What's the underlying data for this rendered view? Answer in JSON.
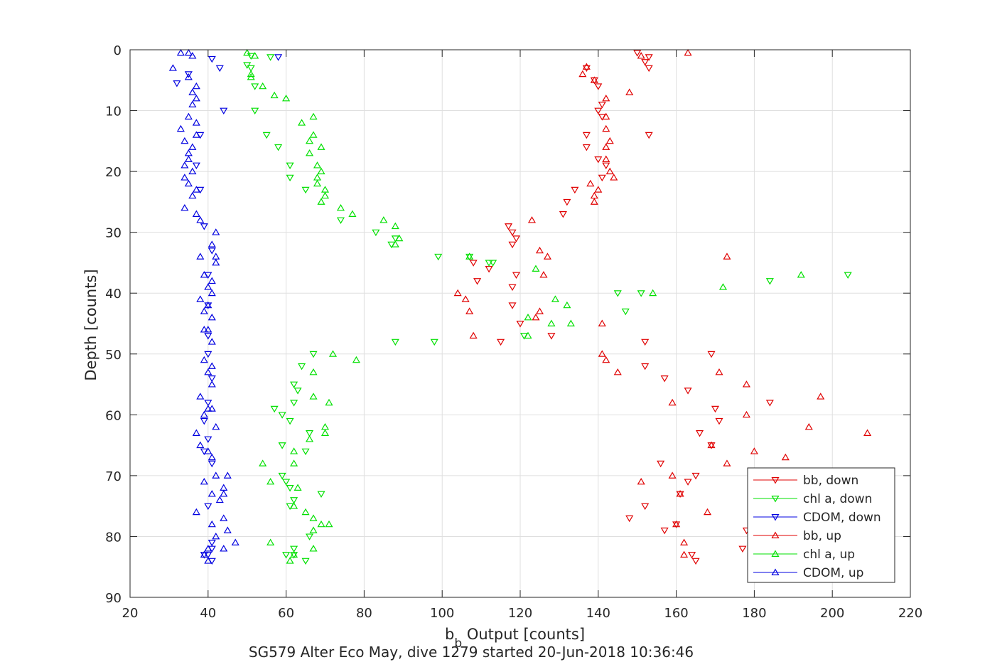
{
  "chart_data": {
    "type": "scatter",
    "xlabel_main": "b",
    "xlabel_sub": "b",
    "xlabel_rest": " Output [counts]",
    "ylabel": "Depth [counts]",
    "footer": "SG579 Alter Eco May, dive 1279 started 20-Jun-2018 10:36:46",
    "xlim": [
      20,
      220
    ],
    "ylim": [
      0,
      90
    ],
    "y_reversed": true,
    "grid": true,
    "legend_position": "bottom-right",
    "xticks": [
      "20",
      "40",
      "60",
      "80",
      "100",
      "120",
      "140",
      "160",
      "180",
      "200",
      "220"
    ],
    "yticks": [
      "0",
      "10",
      "20",
      "30",
      "40",
      "50",
      "60",
      "70",
      "80",
      "90"
    ],
    "series": [
      {
        "name": "bb, down",
        "color": "#e00000",
        "marker": "triangle-down",
        "points": [
          [
            150,
            0.5
          ],
          [
            153,
            1.2
          ],
          [
            152,
            2
          ],
          [
            153,
            3
          ],
          [
            137,
            3
          ],
          [
            139,
            5
          ],
          [
            140,
            6
          ],
          [
            141,
            9
          ],
          [
            140,
            10
          ],
          [
            141,
            11
          ],
          [
            137,
            14
          ],
          [
            153,
            14
          ],
          [
            137,
            16
          ],
          [
            140,
            18
          ],
          [
            142,
            19
          ],
          [
            141,
            21
          ],
          [
            134,
            23
          ],
          [
            132,
            25
          ],
          [
            131,
            27
          ],
          [
            117,
            29
          ],
          [
            118,
            30
          ],
          [
            119,
            31
          ],
          [
            118,
            32
          ],
          [
            119,
            37
          ],
          [
            108,
            35
          ],
          [
            112,
            36
          ],
          [
            109,
            38
          ],
          [
            118,
            39
          ],
          [
            118,
            42
          ],
          [
            120,
            45
          ],
          [
            128,
            47
          ],
          [
            115,
            48
          ],
          [
            152,
            48
          ],
          [
            169,
            50
          ],
          [
            152,
            52
          ],
          [
            157,
            54
          ],
          [
            163,
            56
          ],
          [
            184,
            58
          ],
          [
            170,
            59
          ],
          [
            171,
            61
          ],
          [
            166,
            63
          ],
          [
            169,
            65
          ],
          [
            156,
            68
          ],
          [
            165,
            70
          ],
          [
            163,
            71
          ],
          [
            161,
            73
          ],
          [
            152,
            75
          ],
          [
            148,
            77
          ],
          [
            157,
            79
          ],
          [
            160,
            78
          ],
          [
            164,
            83
          ],
          [
            165,
            84
          ],
          [
            178,
            79
          ],
          [
            177,
            82
          ]
        ]
      },
      {
        "name": "chl a, down",
        "color": "#00e000",
        "marker": "triangle-down",
        "points": [
          [
            51,
            1
          ],
          [
            56,
            1.2
          ],
          [
            50,
            2.5
          ],
          [
            51,
            3
          ],
          [
            52,
            6
          ],
          [
            52,
            10
          ],
          [
            55,
            14
          ],
          [
            58,
            16
          ],
          [
            61,
            19
          ],
          [
            61,
            21
          ],
          [
            65,
            23
          ],
          [
            74,
            28
          ],
          [
            88,
            31
          ],
          [
            83,
            30
          ],
          [
            87,
            32
          ],
          [
            99,
            34
          ],
          [
            112,
            35
          ],
          [
            107,
            34
          ],
          [
            113,
            35
          ],
          [
            121,
            47
          ],
          [
            88,
            48
          ],
          [
            98,
            48
          ],
          [
            145,
            40
          ],
          [
            147,
            43
          ],
          [
            151,
            40
          ],
          [
            184,
            38
          ],
          [
            204,
            37
          ],
          [
            67,
            50
          ],
          [
            64,
            52
          ],
          [
            62,
            55
          ],
          [
            63,
            56
          ],
          [
            62,
            58
          ],
          [
            57,
            59
          ],
          [
            59,
            60
          ],
          [
            61,
            61
          ],
          [
            66,
            63
          ],
          [
            59,
            65
          ],
          [
            65,
            66
          ],
          [
            59,
            70
          ],
          [
            60,
            71
          ],
          [
            61,
            72
          ],
          [
            62,
            74
          ],
          [
            61,
            75
          ],
          [
            69,
            73
          ],
          [
            66,
            80
          ],
          [
            62,
            82
          ],
          [
            62,
            83
          ],
          [
            60,
            83
          ],
          [
            65,
            84
          ]
        ]
      },
      {
        "name": "CDOM, down",
        "color": "#0000e0",
        "marker": "triangle-down",
        "points": [
          [
            58,
            1.2
          ],
          [
            41,
            1.5
          ],
          [
            43,
            3
          ],
          [
            35,
            4
          ],
          [
            32,
            5.5
          ],
          [
            44,
            10
          ],
          [
            38,
            14
          ],
          [
            37,
            19
          ],
          [
            38,
            23
          ],
          [
            39,
            29
          ],
          [
            41,
            33
          ],
          [
            40,
            37
          ],
          [
            40,
            42
          ],
          [
            40,
            47
          ],
          [
            40,
            50
          ],
          [
            41,
            54
          ],
          [
            40,
            58
          ],
          [
            39,
            61
          ],
          [
            40,
            64
          ],
          [
            39,
            66
          ],
          [
            41,
            68
          ],
          [
            40,
            75
          ],
          [
            41,
            81
          ],
          [
            41,
            82
          ],
          [
            40,
            83
          ],
          [
            41,
            84
          ],
          [
            39,
            83
          ]
        ]
      },
      {
        "name": "bb, up",
        "color": "#e00000",
        "marker": "triangle-up",
        "points": [
          [
            163,
            0.5
          ],
          [
            151,
            1
          ],
          [
            137,
            2.8
          ],
          [
            136,
            4
          ],
          [
            139,
            5
          ],
          [
            148,
            7
          ],
          [
            142,
            8
          ],
          [
            142,
            11
          ],
          [
            142,
            13
          ],
          [
            143,
            15
          ],
          [
            142,
            16
          ],
          [
            142,
            18
          ],
          [
            143,
            20
          ],
          [
            144,
            21
          ],
          [
            138,
            22
          ],
          [
            140,
            23
          ],
          [
            139,
            24
          ],
          [
            139,
            25
          ],
          [
            123,
            28
          ],
          [
            125,
            33
          ],
          [
            127,
            34
          ],
          [
            126,
            37
          ],
          [
            104,
            40
          ],
          [
            106,
            41
          ],
          [
            107,
            43
          ],
          [
            108,
            47
          ],
          [
            124,
            44
          ],
          [
            125,
            43
          ],
          [
            141,
            45
          ],
          [
            141,
            50
          ],
          [
            142,
            51
          ],
          [
            145,
            53
          ],
          [
            173,
            34
          ],
          [
            178,
            55
          ],
          [
            197,
            57
          ],
          [
            159,
            58
          ],
          [
            178,
            60
          ],
          [
            194,
            62
          ],
          [
            209,
            63
          ],
          [
            180,
            66
          ],
          [
            188,
            67
          ],
          [
            169,
            65
          ],
          [
            173,
            68
          ],
          [
            159,
            70
          ],
          [
            171,
            53
          ],
          [
            151,
            71
          ],
          [
            168,
            76
          ],
          [
            160,
            78
          ],
          [
            162,
            81
          ],
          [
            161,
            73
          ],
          [
            162,
            83
          ]
        ]
      },
      {
        "name": "chl a, up",
        "color": "#00e000",
        "marker": "triangle-up",
        "points": [
          [
            50,
            0.5
          ],
          [
            52,
            1
          ],
          [
            51,
            4
          ],
          [
            51,
            4.5
          ],
          [
            54,
            6
          ],
          [
            57,
            7.5
          ],
          [
            60,
            8
          ],
          [
            67,
            11
          ],
          [
            64,
            12
          ],
          [
            67,
            14
          ],
          [
            66,
            15
          ],
          [
            69,
            16
          ],
          [
            66,
            17
          ],
          [
            68,
            19
          ],
          [
            69,
            20
          ],
          [
            68,
            21
          ],
          [
            68,
            22
          ],
          [
            70,
            23
          ],
          [
            70,
            24
          ],
          [
            69,
            25
          ],
          [
            74,
            26
          ],
          [
            77,
            27
          ],
          [
            85,
            28
          ],
          [
            88,
            29
          ],
          [
            89,
            31
          ],
          [
            88,
            32
          ],
          [
            107,
            34
          ],
          [
            124,
            36
          ],
          [
            129,
            41
          ],
          [
            132,
            42
          ],
          [
            122,
            44
          ],
          [
            128,
            45
          ],
          [
            133,
            45
          ],
          [
            122,
            47
          ],
          [
            154,
            40
          ],
          [
            172,
            39
          ],
          [
            192,
            37
          ],
          [
            72,
            50
          ],
          [
            78,
            51
          ],
          [
            67,
            53
          ],
          [
            67,
            57
          ],
          [
            71,
            58
          ],
          [
            70,
            62
          ],
          [
            70,
            63
          ],
          [
            66,
            64
          ],
          [
            54,
            68
          ],
          [
            62,
            66
          ],
          [
            62,
            68
          ],
          [
            56,
            71
          ],
          [
            63,
            72
          ],
          [
            62,
            75
          ],
          [
            65,
            76
          ],
          [
            67,
            77
          ],
          [
            69,
            78
          ],
          [
            71,
            78
          ],
          [
            67,
            79
          ],
          [
            56,
            81
          ],
          [
            67,
            82
          ],
          [
            62,
            83
          ],
          [
            61,
            84
          ]
        ]
      },
      {
        "name": "CDOM, up",
        "color": "#0000e0",
        "marker": "triangle-up",
        "points": [
          [
            33,
            0.5
          ],
          [
            35,
            0.5
          ],
          [
            36,
            1
          ],
          [
            31,
            3
          ],
          [
            35,
            4.5
          ],
          [
            37,
            6
          ],
          [
            36,
            7
          ],
          [
            37,
            8
          ],
          [
            36,
            9
          ],
          [
            35,
            11
          ],
          [
            37,
            12
          ],
          [
            33,
            13
          ],
          [
            37,
            14
          ],
          [
            34,
            15
          ],
          [
            36,
            16
          ],
          [
            35,
            17
          ],
          [
            35,
            18
          ],
          [
            34,
            19
          ],
          [
            36,
            20
          ],
          [
            34,
            21
          ],
          [
            35,
            22
          ],
          [
            37,
            23
          ],
          [
            36,
            24
          ],
          [
            34,
            26
          ],
          [
            37,
            27
          ],
          [
            38,
            28
          ],
          [
            42,
            30
          ],
          [
            41,
            32
          ],
          [
            42,
            34
          ],
          [
            38,
            34
          ],
          [
            42,
            35
          ],
          [
            39,
            37
          ],
          [
            41,
            38
          ],
          [
            40,
            39
          ],
          [
            41,
            40
          ],
          [
            38,
            41
          ],
          [
            40,
            42
          ],
          [
            39,
            43
          ],
          [
            41,
            44
          ],
          [
            39,
            46
          ],
          [
            40,
            46
          ],
          [
            41,
            48
          ],
          [
            39,
            51
          ],
          [
            41,
            52
          ],
          [
            40,
            53
          ],
          [
            41,
            55
          ],
          [
            38,
            57
          ],
          [
            40,
            59
          ],
          [
            41,
            59
          ],
          [
            39,
            60
          ],
          [
            42,
            62
          ],
          [
            37,
            63
          ],
          [
            38,
            65
          ],
          [
            40,
            66
          ],
          [
            41,
            67
          ],
          [
            42,
            70
          ],
          [
            45,
            70
          ],
          [
            44,
            72
          ],
          [
            39,
            71
          ],
          [
            41,
            73
          ],
          [
            44,
            73
          ],
          [
            43,
            74
          ],
          [
            37,
            76
          ],
          [
            44,
            77
          ],
          [
            41,
            78
          ],
          [
            45,
            79
          ],
          [
            42,
            80
          ],
          [
            47,
            81
          ],
          [
            44,
            82
          ],
          [
            40,
            82
          ],
          [
            39,
            83
          ],
          [
            40,
            84
          ]
        ]
      }
    ]
  }
}
